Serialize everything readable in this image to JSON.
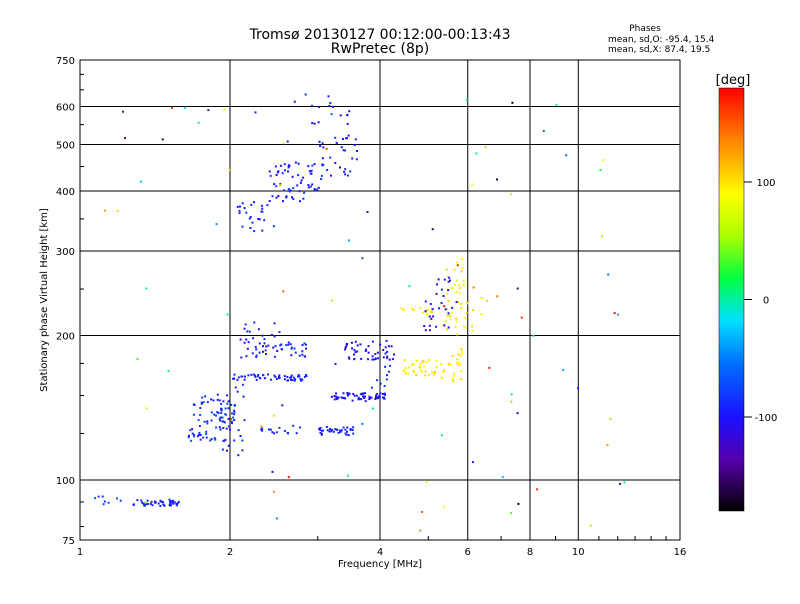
{
  "title_line1": "Tromsø 20130127 00:12:00-00:13:43",
  "title_line2": "RwPretec (8p)",
  "stats": {
    "heading": "Phases",
    "line_o": "mean, sd,O: -95.4, 15.4",
    "line_x": "mean, sd,X:  87.4, 19.5"
  },
  "colorbar": {
    "unit_label": "[deg]",
    "ticks": [
      {
        "value": 100,
        "label": "100"
      },
      {
        "value": 0,
        "label": "0"
      },
      {
        "value": -100,
        "label": "-100"
      }
    ],
    "range": [
      -180,
      180
    ]
  },
  "chart_data": {
    "type": "scatter",
    "xlabel": "Frequency [MHz]",
    "ylabel": "Stationary phase Virtual Height [km]",
    "xscale": "log",
    "yscale": "log",
    "xlim": [
      1,
      16
    ],
    "ylim": [
      75,
      750
    ],
    "grid": true,
    "x_ticks": [
      {
        "value": 1,
        "label": "1"
      },
      {
        "value": 2,
        "label": "2"
      },
      {
        "value": 4,
        "label": "4"
      },
      {
        "value": 6,
        "label": "6"
      },
      {
        "value": 8,
        "label": "8"
      },
      {
        "value": 10,
        "label": "10"
      },
      {
        "value": 16,
        "label": "16"
      }
    ],
    "y_ticks": [
      {
        "value": 75,
        "label": "75"
      },
      {
        "value": 100,
        "label": "100"
      },
      {
        "value": 200,
        "label": "200"
      },
      {
        "value": 300,
        "label": "300"
      },
      {
        "value": 400,
        "label": "400"
      },
      {
        "value": 500,
        "label": "500"
      },
      {
        "value": 600,
        "label": "600"
      },
      {
        "value": 750,
        "label": "750"
      }
    ],
    "clusters": [
      {
        "f": [
          1.28,
          1.58
        ],
        "h": [
          88,
          91
        ],
        "phase": [
          -100,
          -88
        ],
        "n": 45
      },
      {
        "f": [
          1.05,
          1.25
        ],
        "h": [
          89,
          94
        ],
        "phase": [
          -100,
          -60
        ],
        "n": 8
      },
      {
        "f": [
          1.65,
          2.05
        ],
        "h": [
          120,
          150
        ],
        "phase": [
          -100,
          -70
        ],
        "n": 75
      },
      {
        "f": [
          1.85,
          2.15
        ],
        "h": [
          112,
          160
        ],
        "phase": [
          -100,
          -85
        ],
        "n": 30
      },
      {
        "f": [
          2.02,
          2.85
        ],
        "h": [
          161,
          166
        ],
        "phase": [
          -100,
          -85
        ],
        "n": 55
      },
      {
        "f": [
          2.1,
          2.9
        ],
        "h": [
          180,
          195
        ],
        "phase": [
          -110,
          -80
        ],
        "n": 45
      },
      {
        "f": [
          2.1,
          2.6
        ],
        "h": [
          196,
          215
        ],
        "phase": [
          -105,
          -80
        ],
        "n": 15
      },
      {
        "f": [
          2.3,
          2.8
        ],
        "h": [
          124,
          130
        ],
        "phase": [
          -100,
          -80
        ],
        "n": 15
      },
      {
        "f": [
          3.0,
          3.55
        ],
        "h": [
          124,
          129
        ],
        "phase": [
          -100,
          -85
        ],
        "n": 35
      },
      {
        "f": [
          3.2,
          4.15
        ],
        "h": [
          146,
          152
        ],
        "phase": [
          -110,
          -90
        ],
        "n": 60
      },
      {
        "f": [
          3.4,
          4.3
        ],
        "h": [
          178,
          196
        ],
        "phase": [
          -120,
          -90
        ],
        "n": 45
      },
      {
        "f": [
          3.8,
          4.2
        ],
        "h": [
          155,
          180
        ],
        "phase": [
          -100,
          -80
        ],
        "n": 12
      },
      {
        "f": [
          2.05,
          2.45
        ],
        "h": [
          330,
          380
        ],
        "phase": [
          -100,
          -80
        ],
        "n": 25
      },
      {
        "f": [
          2.4,
          3.05
        ],
        "h": [
          380,
          460
        ],
        "phase": [
          -110,
          -75
        ],
        "n": 60
      },
      {
        "f": [
          3.0,
          3.6
        ],
        "h": [
          430,
          520
        ],
        "phase": [
          -110,
          -75
        ],
        "n": 30
      },
      {
        "f": [
          2.6,
          3.5
        ],
        "h": [
          510,
          640
        ],
        "phase": [
          -110,
          -80
        ],
        "n": 18
      },
      {
        "f": [
          4.45,
          5.25
        ],
        "h": [
          165,
          178
        ],
        "phase": [
          85,
          110
        ],
        "n": 35
      },
      {
        "f": [
          5.3,
          5.9
        ],
        "h": [
          160,
          190
        ],
        "phase": [
          80,
          110
        ],
        "n": 25
      },
      {
        "f": [
          5.4,
          5.95
        ],
        "h": [
          200,
          290
        ],
        "phase": [
          75,
          110
        ],
        "n": 40
      },
      {
        "f": [
          4.4,
          5.2
        ],
        "h": [
          220,
          228
        ],
        "phase": [
          90,
          105
        ],
        "n": 15
      },
      {
        "f": [
          4.9,
          5.7
        ],
        "h": [
          205,
          265
        ],
        "phase": [
          -130,
          -90
        ],
        "n": 30
      },
      {
        "f": [
          5.9,
          6.6
        ],
        "h": [
          200,
          240
        ],
        "phase": [
          80,
          110
        ],
        "n": 10
      },
      {
        "f": [
          1.1,
          12.5
        ],
        "h": [
          78,
          640
        ],
        "phase": [
          -180,
          180
        ],
        "n": 90
      }
    ]
  }
}
